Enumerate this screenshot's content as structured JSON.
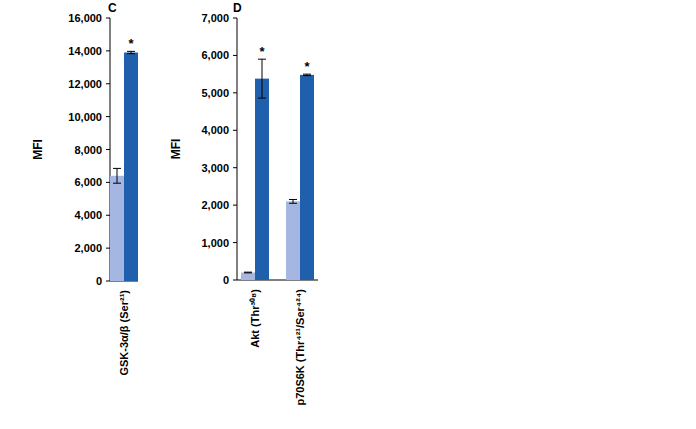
{
  "chart_data": [
    {
      "type": "bar",
      "title": "C",
      "y_label": "MFI",
      "categories": [
        "GSK-3α/β (Ser²¹)"
      ],
      "ylim": [
        0,
        16000
      ],
      "yticks": [
        0,
        {
          "value": 2000,
          "label": "2,000"
        },
        {
          "value": 4000,
          "label": "4,000"
        },
        {
          "value": 6000,
          "label": "6,000"
        },
        {
          "value": 8000,
          "label": "8,000"
        },
        {
          "value": 10000,
          "label": "10,000"
        },
        {
          "value": 12000,
          "label": "12,000"
        },
        {
          "value": 14000,
          "label": "14,000"
        },
        {
          "value": 16000,
          "label": "16,000"
        }
      ],
      "grid": false,
      "series": [
        {
          "color": "#a4b6e1",
          "values": [
            6400
          ],
          "errors": [
            450
          ],
          "annotations": [
            null
          ]
        },
        {
          "color": "#1f5fab",
          "values": [
            13900
          ],
          "errors": [
            70
          ],
          "annotations": [
            "*"
          ]
        }
      ]
    },
    {
      "type": "bar",
      "title": "D",
      "y_label": "MFI",
      "categories": [
        "Akt (Thr³⁰⁸)",
        "p70S6K (Thr⁴²¹/Ser⁴²⁴)"
      ],
      "ylim": [
        0,
        7000
      ],
      "yticks": [
        0,
        {
          "value": 1000,
          "label": "1,000"
        },
        {
          "value": 2000,
          "label": "2,000"
        },
        {
          "value": 3000,
          "label": "3,000"
        },
        {
          "value": 4000,
          "label": "4,000"
        },
        {
          "value": 5000,
          "label": "5,000"
        },
        {
          "value": 6000,
          "label": "6,000"
        },
        {
          "value": 7000,
          "label": "7,000"
        }
      ],
      "grid": false,
      "series": [
        {
          "color": "#a4b6e1",
          "values": [
            200,
            2100
          ],
          "errors": [
            10,
            50
          ],
          "annotations": [
            null,
            null
          ]
        },
        {
          "color": "#1f5fab",
          "values": [
            5380,
            5480
          ],
          "errors": [
            520,
            20
          ],
          "annotations": [
            "*",
            "*"
          ]
        }
      ]
    }
  ]
}
